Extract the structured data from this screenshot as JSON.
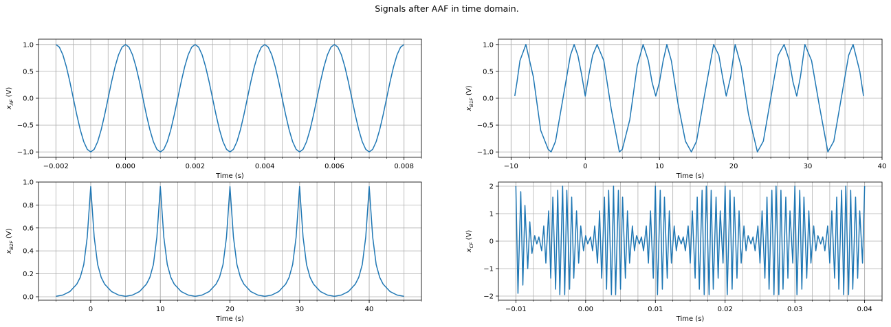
{
  "figure": {
    "suptitle": "Signals after AAF in time domain."
  },
  "chart_data": [
    {
      "type": "line",
      "xlabel": "Time (s)",
      "ylabel_main": "x",
      "ylabel_sub": "AF",
      "ylabel_unit": " (V)",
      "xlim": [
        -0.0025,
        0.0085
      ],
      "ylim": [
        -1.1,
        1.1
      ],
      "xticks": [
        -0.002,
        0.0,
        0.002,
        0.004,
        0.006,
        0.008
      ],
      "xtick_labels": [
        "−0.002",
        "0.000",
        "0.002",
        "0.004",
        "0.006",
        "0.008"
      ],
      "yticks": [
        -1.0,
        -0.5,
        0.0,
        0.5,
        1.0
      ],
      "ytick_labels": [
        "−1.0",
        "−0.5",
        "0.0",
        "0.5",
        "1.0"
      ],
      "x_minor_step": 0.0005,
      "grid": true,
      "series": [
        {
          "color": "#1f77b4",
          "x": [
            -0.002,
            -0.0019,
            -0.0018,
            -0.0017,
            -0.0016,
            -0.0015,
            -0.0014,
            -0.0013,
            -0.0012,
            -0.0011,
            -0.001,
            -0.0009,
            -0.0008,
            -0.0007,
            -0.0006,
            -0.0005,
            -0.0004,
            -0.0003,
            -0.0002,
            -0.0001,
            0.0,
            0.0001,
            0.0002,
            0.0003,
            0.0004,
            0.0005,
            0.0006,
            0.0007,
            0.0008,
            0.0009,
            0.001,
            0.0011,
            0.0012,
            0.0013,
            0.0014,
            0.0015,
            0.0016,
            0.0017,
            0.0018,
            0.0019,
            0.002,
            0.0021,
            0.0022,
            0.0023,
            0.0024,
            0.0025,
            0.0026,
            0.0027,
            0.0028,
            0.0029,
            0.003,
            0.0031,
            0.0032,
            0.0033,
            0.0034,
            0.0035,
            0.0036,
            0.0037,
            0.0038,
            0.0039,
            0.004,
            0.0041,
            0.0042,
            0.0043,
            0.0044,
            0.0045,
            0.0046,
            0.0047,
            0.0048,
            0.0049,
            0.005,
            0.0051,
            0.0052,
            0.0053,
            0.0054,
            0.0055,
            0.0056,
            0.0057,
            0.0058,
            0.0059,
            0.006,
            0.0061,
            0.0062,
            0.0063,
            0.0064,
            0.0065,
            0.0066,
            0.0067,
            0.0068,
            0.0069,
            0.007,
            0.0071,
            0.0072,
            0.0073,
            0.0074,
            0.0075,
            0.0076,
            0.0077,
            0.0078,
            0.0079,
            0.008
          ],
          "y": [
            1.0,
            0.951,
            0.809,
            0.588,
            0.309,
            0.0,
            -0.309,
            -0.588,
            -0.809,
            -0.951,
            -1.0,
            -0.951,
            -0.809,
            -0.588,
            -0.309,
            0.0,
            0.309,
            0.588,
            0.809,
            0.951,
            1.0,
            0.951,
            0.809,
            0.588,
            0.309,
            0.0,
            -0.309,
            -0.588,
            -0.809,
            -0.951,
            -1.0,
            -0.951,
            -0.809,
            -0.588,
            -0.309,
            0.0,
            0.309,
            0.588,
            0.809,
            0.951,
            1.0,
            0.951,
            0.809,
            0.588,
            0.309,
            0.0,
            -0.309,
            -0.588,
            -0.809,
            -0.951,
            -1.0,
            -0.951,
            -0.809,
            -0.588,
            -0.309,
            0.0,
            0.309,
            0.588,
            0.809,
            0.951,
            1.0,
            0.951,
            0.809,
            0.588,
            0.309,
            0.0,
            -0.309,
            -0.588,
            -0.809,
            -0.951,
            -1.0,
            -0.951,
            -0.809,
            -0.588,
            -0.309,
            0.0,
            0.309,
            0.588,
            0.809,
            0.951,
            1.0,
            0.951,
            0.809,
            0.588,
            0.309,
            0.0,
            -0.309,
            -0.588,
            -0.809,
            -0.951,
            -1.0,
            -0.951,
            -0.809,
            -0.588,
            -0.309,
            0.0,
            0.309,
            0.588,
            0.809,
            0.951,
            1.0
          ]
        }
      ]
    },
    {
      "type": "line",
      "xlabel": "Time (s)",
      "ylabel_main": "x",
      "ylabel_sub": "B1F",
      "ylabel_unit": " (V)",
      "xlim": [
        -11.7,
        40.0
      ],
      "ylim": [
        -1.1,
        1.1
      ],
      "xticks": [
        -10,
        0,
        10,
        20,
        30,
        40
      ],
      "xtick_labels": [
        "−10",
        "0",
        "10",
        "20",
        "30",
        "40"
      ],
      "yticks": [
        -1.0,
        -0.5,
        0.0,
        0.5,
        1.0
      ],
      "ytick_labels": [
        "−1.0",
        "−0.5",
        "0.0",
        "0.5",
        "1.0"
      ],
      "x_minor_step": 2.5,
      "grid": true,
      "series": [
        {
          "color": "#1f77b4",
          "x": [
            -9.5,
            -9.2,
            -8.8,
            -8.0,
            -7.0,
            -6.0,
            -5.0,
            -4.6,
            -4.0,
            -3.0,
            -2.0,
            -1.5,
            -1.0,
            -0.5,
            0.0,
            0.5,
            1.0,
            1.6,
            2.5,
            3.5,
            4.6,
            5.0,
            6.0,
            7.0,
            7.8,
            8.5,
            9.0,
            9.5,
            10.0,
            10.5,
            11.0,
            11.6,
            12.5,
            13.5,
            14.3,
            15.0,
            16.0,
            17.3,
            18.0,
            18.5,
            19.0,
            19.6,
            20.2,
            21.0,
            22.0,
            23.2,
            24.0,
            25.0,
            26.0,
            26.8,
            27.5,
            28.0,
            28.5,
            29.0,
            29.6,
            30.5,
            31.5,
            32.7,
            33.5,
            34.5,
            35.5,
            36.1,
            37.0,
            37.5
          ],
          "y": [
            0.04,
            0.3,
            0.7,
            1.0,
            0.4,
            -0.6,
            -0.95,
            -1.0,
            -0.8,
            0.0,
            0.8,
            1.0,
            0.8,
            0.45,
            0.04,
            0.45,
            0.8,
            1.0,
            0.7,
            -0.2,
            -1.0,
            -0.95,
            -0.4,
            0.6,
            1.0,
            0.7,
            0.3,
            0.04,
            0.3,
            0.7,
            1.0,
            0.7,
            -0.1,
            -0.8,
            -1.0,
            -0.8,
            0.0,
            1.0,
            0.8,
            0.4,
            0.04,
            0.4,
            1.0,
            0.6,
            -0.3,
            -1.0,
            -0.8,
            0.0,
            0.8,
            1.0,
            0.7,
            0.3,
            0.04,
            0.4,
            1.0,
            0.7,
            -0.1,
            -1.0,
            -0.8,
            0.0,
            0.8,
            1.0,
            0.5,
            0.04
          ]
        }
      ]
    },
    {
      "type": "line",
      "xlabel": "Time (s)",
      "ylabel_main": "x",
      "ylabel_sub": "B2F",
      "ylabel_unit": " (V)",
      "xlim": [
        -7.5,
        47.5
      ],
      "ylim": [
        -0.03,
        1.0
      ],
      "xticks": [
        0,
        10,
        20,
        30,
        40
      ],
      "xtick_labels": [
        "0",
        "10",
        "20",
        "30",
        "40"
      ],
      "yticks": [
        0.0,
        0.2,
        0.4,
        0.6,
        0.8,
        1.0
      ],
      "ytick_labels": [
        "0.0",
        "0.2",
        "0.4",
        "0.6",
        "0.8",
        "1.0"
      ],
      "x_minor_step": 2.5,
      "grid": true,
      "series": [
        {
          "color": "#1f77b4",
          "x": [
            -5.0,
            -4.0,
            -3.0,
            -2.0,
            -1.5,
            -1.0,
            -0.5,
            0.0,
            0.5,
            1.0,
            1.5,
            2.0,
            3.0,
            4.0,
            5.0,
            6.0,
            7.0,
            8.0,
            8.5,
            9.0,
            9.5,
            10.0,
            10.5,
            11.0,
            11.5,
            12.0,
            13.0,
            14.0,
            15.0,
            16.0,
            17.0,
            18.0,
            18.5,
            19.0,
            19.5,
            20.0,
            20.5,
            21.0,
            21.5,
            22.0,
            23.0,
            24.0,
            25.0,
            26.0,
            27.0,
            28.0,
            28.5,
            29.0,
            29.5,
            30.0,
            30.5,
            31.0,
            31.5,
            32.0,
            33.0,
            34.0,
            35.0,
            36.0,
            37.0,
            38.0,
            38.5,
            39.0,
            39.5,
            40.0,
            40.5,
            41.0,
            41.5,
            42.0,
            43.0,
            44.0,
            45.0
          ],
          "y": [
            0.004,
            0.015,
            0.045,
            0.11,
            0.17,
            0.28,
            0.52,
            0.96,
            0.52,
            0.28,
            0.17,
            0.11,
            0.045,
            0.015,
            0.004,
            0.015,
            0.045,
            0.11,
            0.17,
            0.28,
            0.52,
            0.96,
            0.52,
            0.28,
            0.17,
            0.11,
            0.045,
            0.015,
            0.004,
            0.015,
            0.045,
            0.11,
            0.17,
            0.28,
            0.52,
            0.96,
            0.52,
            0.28,
            0.17,
            0.11,
            0.045,
            0.015,
            0.004,
            0.015,
            0.045,
            0.11,
            0.17,
            0.28,
            0.52,
            0.96,
            0.52,
            0.28,
            0.17,
            0.11,
            0.045,
            0.015,
            0.004,
            0.015,
            0.045,
            0.11,
            0.17,
            0.28,
            0.52,
            0.96,
            0.52,
            0.28,
            0.17,
            0.11,
            0.045,
            0.015,
            0.004
          ]
        }
      ]
    },
    {
      "type": "line",
      "xlabel": "Time (s)",
      "ylabel_main": "x",
      "ylabel_sub": "CF",
      "ylabel_unit": " (V)",
      "xlim": [
        -0.0125,
        0.0425
      ],
      "ylim": [
        -2.15,
        2.15
      ],
      "xticks": [
        -0.01,
        0.0,
        0.01,
        0.02,
        0.03,
        0.04
      ],
      "xtick_labels": [
        "−0.01",
        "0.00",
        "0.01",
        "0.02",
        "0.03",
        "0.04"
      ],
      "yticks": [
        -2,
        -1,
        0,
        1,
        2
      ],
      "ytick_labels": [
        "−2",
        "−1",
        "0",
        "1",
        "2"
      ],
      "x_minor_step": 0.0025,
      "grid": true,
      "series": [
        {
          "color": "#1f77b4",
          "x": [
            -0.01,
            -0.0097,
            -0.0093,
            -0.009,
            -0.0087,
            -0.0083,
            -0.008,
            -0.0077,
            -0.0073,
            -0.007,
            -0.0067,
            -0.0063,
            -0.006,
            -0.0057,
            -0.0053,
            -0.005,
            -0.0047,
            -0.0043,
            -0.004,
            -0.0037,
            -0.0033,
            -0.003,
            -0.0027,
            -0.0023,
            -0.002,
            -0.0017,
            -0.0013,
            -0.001,
            -0.0007,
            -0.0003,
            0.0,
            0.0003,
            0.0007,
            0.001,
            0.0013,
            0.0017,
            0.002,
            0.0023,
            0.0027,
            0.003,
            0.0033,
            0.0037,
            0.004,
            0.0043,
            0.0047,
            0.005,
            0.0053,
            0.0057,
            0.006,
            0.0063,
            0.0067,
            0.007,
            0.0073,
            0.0077,
            0.008,
            0.0083,
            0.0087,
            0.009,
            0.0093,
            0.0097,
            0.01,
            0.0103,
            0.0107,
            0.011,
            0.0113,
            0.0117,
            0.012,
            0.0123,
            0.0127,
            0.013,
            0.0133,
            0.0137,
            0.014,
            0.0143,
            0.0147,
            0.015,
            0.0153,
            0.0157,
            0.016,
            0.0163,
            0.0167,
            0.017,
            0.0173,
            0.0177,
            0.018,
            0.0183,
            0.0187,
            0.019,
            0.0193,
            0.0197,
            0.02,
            0.0203,
            0.0207,
            0.021,
            0.0213,
            0.0217,
            0.022,
            0.0223,
            0.0227,
            0.023,
            0.0233,
            0.0237,
            0.024,
            0.0243,
            0.0247,
            0.025,
            0.0253,
            0.0257,
            0.026,
            0.0263,
            0.0267,
            0.027,
            0.0273,
            0.0277,
            0.028,
            0.0283,
            0.0287,
            0.029,
            0.0293,
            0.0297,
            0.03,
            0.0303,
            0.0307,
            0.031,
            0.0313,
            0.0317,
            0.032,
            0.0323,
            0.0327,
            0.033,
            0.0333,
            0.0337,
            0.034,
            0.0343,
            0.0347,
            0.035,
            0.0353,
            0.0357,
            0.036,
            0.0363,
            0.0367,
            0.037,
            0.0373,
            0.0377,
            0.038,
            0.0383,
            0.0387,
            0.039,
            0.0393,
            0.0397,
            0.04
          ],
          "y": [
            2.0,
            -1.9,
            1.8,
            -1.6,
            1.3,
            -1.0,
            0.7,
            -0.45,
            0.2,
            -0.1,
            0.15,
            -0.35,
            0.55,
            -0.8,
            1.1,
            -1.35,
            1.6,
            -1.75,
            1.85,
            -1.95,
            2.0,
            -1.95,
            1.85,
            -1.75,
            1.6,
            -1.35,
            1.1,
            -0.8,
            0.55,
            -0.35,
            0.2,
            -0.1,
            0.15,
            -0.35,
            0.55,
            -0.8,
            1.1,
            -1.35,
            1.6,
            -1.75,
            1.85,
            -1.95,
            2.0,
            -1.95,
            1.85,
            -1.75,
            1.6,
            -1.35,
            1.1,
            -0.8,
            0.55,
            -0.35,
            0.2,
            -0.1,
            0.15,
            -0.35,
            0.55,
            -0.8,
            1.1,
            -1.35,
            2.0,
            -1.95,
            1.85,
            -1.75,
            1.6,
            -1.35,
            1.1,
            -0.8,
            0.55,
            -0.35,
            0.2,
            -0.1,
            0.15,
            -0.35,
            0.55,
            -0.8,
            1.1,
            -1.35,
            1.6,
            -1.75,
            1.85,
            -1.95,
            2.0,
            -1.95,
            1.85,
            -1.75,
            1.6,
            -1.35,
            1.1,
            -0.8,
            2.0,
            -1.95,
            1.85,
            -1.75,
            1.6,
            -1.35,
            1.1,
            -0.8,
            0.55,
            -0.35,
            0.2,
            -0.1,
            0.15,
            -0.35,
            0.55,
            -0.8,
            1.1,
            -1.35,
            1.6,
            -1.75,
            1.85,
            -1.95,
            2.0,
            -1.95,
            1.85,
            -1.75,
            1.6,
            -1.35,
            1.1,
            -0.8,
            2.0,
            -1.95,
            1.85,
            -1.75,
            1.6,
            -1.35,
            1.1,
            -0.8,
            0.55,
            -0.35,
            0.2,
            -0.1,
            0.15,
            -0.35,
            0.55,
            -0.8,
            1.1,
            -1.35,
            1.6,
            -1.75,
            1.85,
            -1.95,
            2.0,
            -1.95,
            1.85,
            -1.75,
            1.6,
            -1.35,
            1.1,
            -0.8,
            2.0
          ]
        }
      ]
    }
  ]
}
